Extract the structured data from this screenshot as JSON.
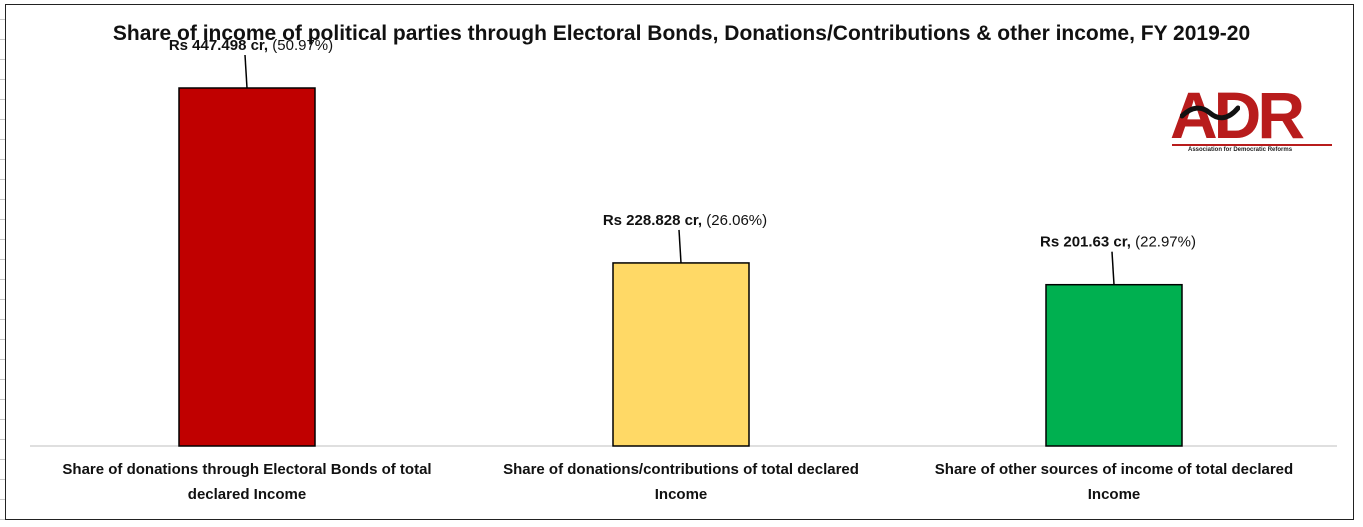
{
  "chart_data": {
    "type": "bar",
    "title": "Share of income of political parties through Electoral Bonds, Donations/Contributions & other income, FY 2019-20",
    "categories": [
      [
        "Share of donations through Electoral Bonds of total",
        "declared Income"
      ],
      [
        "Share of donations/contributions of total declared",
        "Income"
      ],
      [
        "Share of other sources of income of total declared",
        "Income"
      ]
    ],
    "values": [
      447.498,
      228.828,
      201.63
    ],
    "data_labels": [
      {
        "amount": "Rs 447.498 cr,",
        "percent": " (50.97%)"
      },
      {
        "amount": "Rs 228.828 cr,",
        "percent": " (26.06%)"
      },
      {
        "amount": "Rs 201.63 cr,",
        "percent": " (22.97%)"
      }
    ],
    "colors": [
      "#c00000",
      "#ffd966",
      "#00b050"
    ],
    "xlabel": "",
    "ylabel": "",
    "ylim": [
      0,
      500
    ],
    "grid": false,
    "legend": "none"
  },
  "logo": {
    "text": "ADR",
    "subtitle": "Association for Democratic Reforms",
    "color": "#b81c1c"
  }
}
